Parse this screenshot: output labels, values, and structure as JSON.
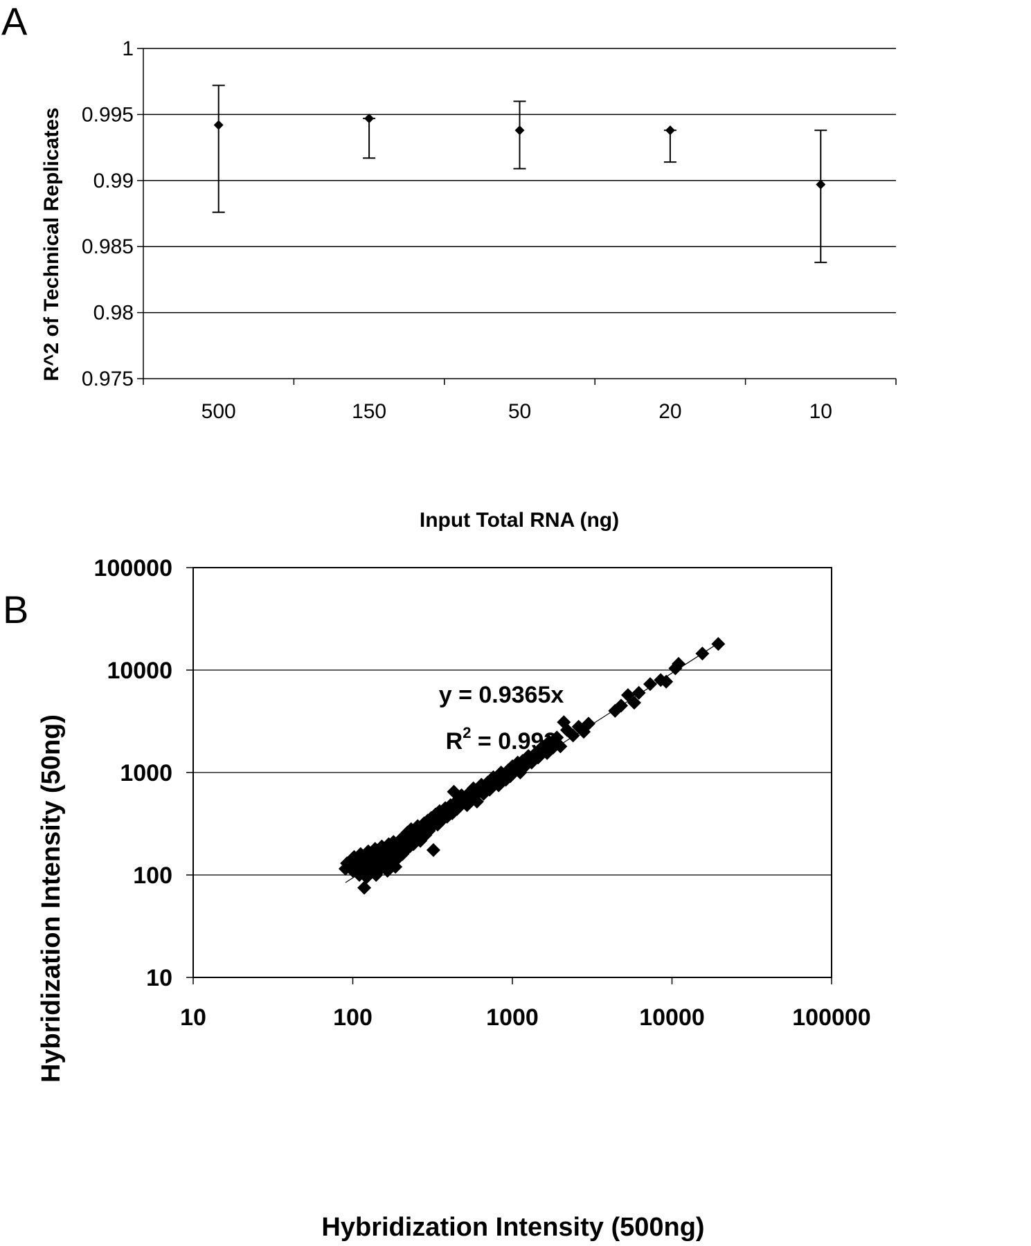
{
  "chart_data": [
    {
      "panel": "A",
      "type": "scatter",
      "title": "",
      "xlabel": "Input Total RNA (ng)",
      "ylabel": "R^2 of Technical Replicates",
      "categories": [
        "500",
        "150",
        "50",
        "20",
        "10"
      ],
      "values": [
        0.9942,
        0.9947,
        0.9938,
        0.9938,
        0.9897
      ],
      "error_low": [
        0.9876,
        0.9917,
        0.9909,
        0.9914,
        0.9838
      ],
      "error_high": [
        0.9972,
        0.9947,
        0.996,
        0.9938,
        0.9938
      ],
      "ylim": [
        0.975,
        1.0
      ],
      "yticks": [
        "0.975",
        "0.98",
        "0.985",
        "0.99",
        "0.995",
        "1"
      ],
      "grid": true,
      "legend": "none"
    },
    {
      "panel": "B",
      "type": "scatter",
      "title": "",
      "xlabel": "Hybridization Intensity (500ng)",
      "ylabel": "Hybridization Intensity (50ng)",
      "xscale": "log",
      "yscale": "log",
      "xlim": [
        10,
        100000
      ],
      "ylim": [
        10,
        100000
      ],
      "xticks": [
        "10",
        "100",
        "1000",
        "10000",
        "100000"
      ],
      "yticks": [
        "10",
        "100",
        "1000",
        "10000",
        "100000"
      ],
      "grid": true,
      "legend": "none",
      "trendline": {
        "slope": 0.9365,
        "equation": "y = 0.9365x",
        "r2_prefix": "R",
        "r2_sup": "2",
        "r2_value": " = 0.993"
      },
      "points": [
        [
          90,
          115
        ],
        [
          92,
          130
        ],
        [
          95,
          125
        ],
        [
          98,
          140
        ],
        [
          100,
          110
        ],
        [
          102,
          150
        ],
        [
          105,
          120
        ],
        [
          108,
          135
        ],
        [
          110,
          100
        ],
        [
          112,
          160
        ],
        [
          115,
          118
        ],
        [
          118,
          75
        ],
        [
          118,
          145
        ],
        [
          120,
          130
        ],
        [
          122,
          95
        ],
        [
          125,
          170
        ],
        [
          128,
          140
        ],
        [
          130,
          110
        ],
        [
          132,
          155
        ],
        [
          135,
          125
        ],
        [
          138,
          180
        ],
        [
          140,
          100
        ],
        [
          142,
          150
        ],
        [
          145,
          135
        ],
        [
          148,
          165
        ],
        [
          150,
          115
        ],
        [
          152,
          190
        ],
        [
          155,
          140
        ],
        [
          158,
          125
        ],
        [
          160,
          175
        ],
        [
          162,
          150
        ],
        [
          165,
          110
        ],
        [
          168,
          200
        ],
        [
          170,
          160
        ],
        [
          172,
          135
        ],
        [
          175,
          185
        ],
        [
          178,
          145
        ],
        [
          180,
          210
        ],
        [
          182,
          165
        ],
        [
          185,
          120
        ],
        [
          188,
          195
        ],
        [
          190,
          170
        ],
        [
          195,
          150
        ],
        [
          198,
          220
        ],
        [
          200,
          185
        ],
        [
          205,
          160
        ],
        [
          210,
          240
        ],
        [
          212,
          200
        ],
        [
          215,
          175
        ],
        [
          220,
          260
        ],
        [
          225,
          210
        ],
        [
          228,
          190
        ],
        [
          232,
          280
        ],
        [
          235,
          225
        ],
        [
          240,
          200
        ],
        [
          245,
          270
        ],
        [
          250,
          235
        ],
        [
          255,
          300
        ],
        [
          260,
          250
        ],
        [
          265,
          215
        ],
        [
          270,
          290
        ],
        [
          275,
          260
        ],
        [
          280,
          320
        ],
        [
          285,
          245
        ],
        [
          290,
          300
        ],
        [
          295,
          340
        ],
        [
          300,
          270
        ],
        [
          310,
          360
        ],
        [
          315,
          300
        ],
        [
          320,
          175
        ],
        [
          325,
          330
        ],
        [
          330,
          390
        ],
        [
          340,
          310
        ],
        [
          345,
          360
        ],
        [
          350,
          420
        ],
        [
          360,
          340
        ],
        [
          370,
          400
        ],
        [
          380,
          450
        ],
        [
          390,
          370
        ],
        [
          400,
          430
        ],
        [
          410,
          480
        ],
        [
          420,
          400
        ],
        [
          430,
          650
        ],
        [
          440,
          500
        ],
        [
          450,
          440
        ],
        [
          460,
          550
        ],
        [
          470,
          480
        ],
        [
          480,
          600
        ],
        [
          495,
          520
        ],
        [
          510,
          580
        ],
        [
          520,
          480
        ],
        [
          540,
          640
        ],
        [
          555,
          560
        ],
        [
          570,
          700
        ],
        [
          590,
          600
        ],
        [
          600,
          520
        ],
        [
          620,
          680
        ],
        [
          640,
          760
        ],
        [
          660,
          620
        ],
        [
          680,
          700
        ],
        [
          700,
          800
        ],
        [
          720,
          680
        ],
        [
          740,
          760
        ],
        [
          760,
          900
        ],
        [
          790,
          820
        ],
        [
          820,
          750
        ],
        [
          850,
          1000
        ],
        [
          880,
          900
        ],
        [
          910,
          850
        ],
        [
          940,
          1050
        ],
        [
          970,
          920
        ],
        [
          1000,
          1150
        ],
        [
          1040,
          1050
        ],
        [
          1080,
          1250
        ],
        [
          1120,
          1000
        ],
        [
          1160,
          1300
        ],
        [
          1200,
          1150
        ],
        [
          1260,
          1450
        ],
        [
          1320,
          1250
        ],
        [
          1400,
          1550
        ],
        [
          1450,
          1400
        ],
        [
          1550,
          1800
        ],
        [
          1650,
          1550
        ],
        [
          1700,
          2000
        ],
        [
          1800,
          1750
        ],
        [
          1900,
          2200
        ],
        [
          2000,
          1800
        ],
        [
          2100,
          3100
        ],
        [
          2200,
          2600
        ],
        [
          2400,
          2300
        ],
        [
          2600,
          2800
        ],
        [
          2800,
          2500
        ],
        [
          3000,
          3000
        ],
        [
          4400,
          4000
        ],
        [
          4800,
          4500
        ],
        [
          5300,
          5700
        ],
        [
          5800,
          4800
        ],
        [
          6200,
          6000
        ],
        [
          7300,
          7300
        ],
        [
          8500,
          8000
        ],
        [
          9200,
          7700
        ],
        [
          10500,
          10400
        ],
        [
          11000,
          11500
        ],
        [
          15500,
          14500
        ],
        [
          19500,
          18000
        ]
      ]
    }
  ],
  "labels": {
    "panel_a": "A",
    "panel_b": "B"
  }
}
